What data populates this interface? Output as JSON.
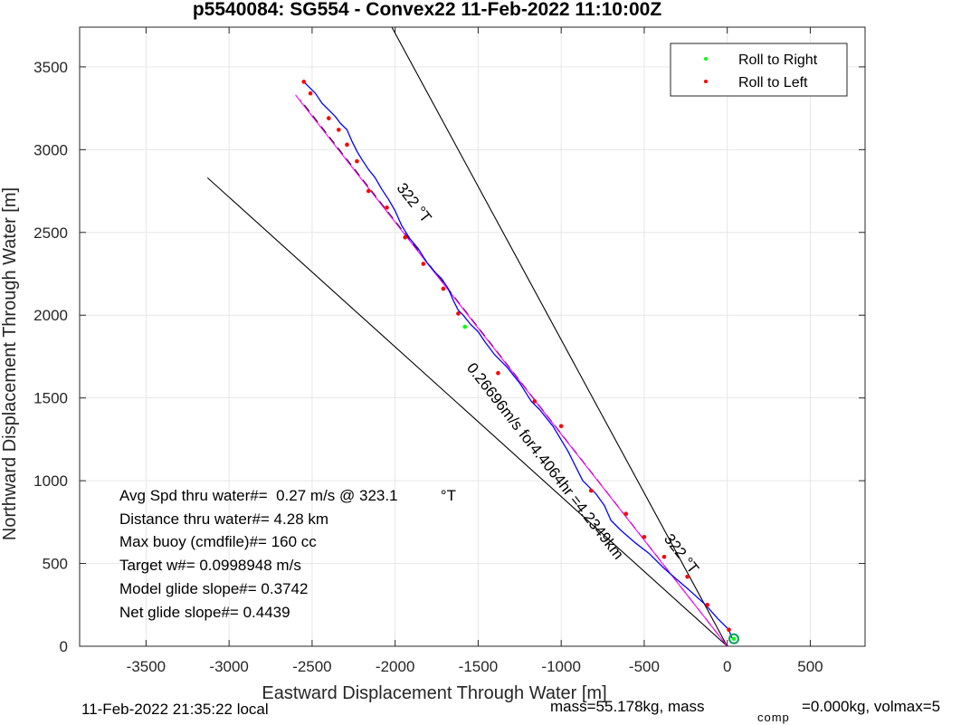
{
  "chart_data": {
    "type": "line",
    "title": "p5540084: SG554 - Convex22 11-Feb-2022 11:10:00Z",
    "xlabel": "Eastward Displacement Through Water [m]",
    "ylabel": "Northward Displacement Through Water [m]",
    "xlim": [
      -3900,
      830
    ],
    "ylim": [
      0,
      3740
    ],
    "xticks": [
      -3500,
      -3000,
      -2500,
      -2000,
      -1500,
      -1000,
      -500,
      0,
      500
    ],
    "yticks": [
      0,
      500,
      1000,
      1500,
      2000,
      2500,
      3000,
      3500
    ],
    "grid": true,
    "legend_position": "top-right",
    "legend": [
      {
        "label": "Roll to Right",
        "color": "#00ff00"
      },
      {
        "label": "Roll to Left",
        "color": "#ff0000"
      }
    ],
    "series": [
      {
        "color": "#0000ff",
        "style": "solid",
        "x": [
          40,
          25,
          10,
          -60,
          -130,
          -230,
          -300,
          -380,
          -470,
          -560,
          -640,
          -700,
          -740,
          -790,
          -870,
          -960,
          -1050,
          -1130,
          -1180,
          -1250,
          -1330,
          -1400,
          -1460,
          -1500,
          -1550,
          -1590,
          -1620,
          -1650,
          -1680,
          -1720,
          -1760,
          -1810,
          -1860,
          -1910,
          -1960,
          -2000,
          -2040,
          -2080,
          -2120,
          -2160,
          -2200,
          -2230,
          -2260,
          -2290,
          -2330,
          -2360,
          -2400,
          -2440,
          -2480,
          -2520,
          -2550
        ],
        "y": [
          40,
          55,
          100,
          170,
          250,
          340,
          400,
          470,
          560,
          630,
          700,
          760,
          850,
          920,
          1000,
          1180,
          1330,
          1430,
          1480,
          1590,
          1690,
          1760,
          1840,
          1900,
          1950,
          2000,
          2030,
          2090,
          2160,
          2220,
          2260,
          2320,
          2400,
          2460,
          2540,
          2630,
          2700,
          2760,
          2830,
          2880,
          2940,
          2990,
          3050,
          3120,
          3160,
          3200,
          3240,
          3280,
          3340,
          3380,
          3410
        ]
      },
      {
        "color": "#ff00ff",
        "style": "solid",
        "x": [
          0,
          -2600
        ],
        "y": [
          0,
          3330
        ]
      },
      {
        "color": "#000000",
        "style": "dashed",
        "x": [
          0,
          -2570
        ],
        "y": [
          0,
          3300
        ]
      },
      {
        "color": "#000000",
        "style": "solid",
        "x": [
          0,
          -2020
        ],
        "y": [
          0,
          3740
        ]
      },
      {
        "color": "#000000",
        "style": "solid",
        "x": [
          0,
          -3130
        ],
        "y": [
          0,
          2830
        ]
      }
    ],
    "roll_right_points": {
      "x": [
        -1580,
        40
      ],
      "y": [
        1930,
        45
      ]
    },
    "roll_left_points": {
      "x": [
        10,
        -120,
        -240,
        -380,
        -500,
        -610,
        -820,
        -1000,
        -1160,
        -1380,
        -1620,
        -1710,
        -1830,
        -1940,
        -2050,
        -2160,
        -2230,
        -2290,
        -2340,
        -2400,
        -2510,
        -2550
      ],
      "y": [
        100,
        250,
        420,
        540,
        660,
        800,
        940,
        1330,
        1480,
        1650,
        2010,
        2160,
        2310,
        2470,
        2650,
        2750,
        2930,
        3030,
        3120,
        3190,
        3340,
        3410
      ]
    },
    "line_labels": [
      {
        "text": "322 °T",
        "x": -1910,
        "y": 2660,
        "angle": 52
      },
      {
        "text": "0.26696m/s for4.4064hr =4.2349km",
        "x": -1120,
        "y": 1100,
        "angle": 52
      },
      {
        "text": "322 °T",
        "x": -300,
        "y": 540,
        "angle": 52
      }
    ],
    "annotations": [
      "Avg Spd thru water#=  0.27 m/s @ 323.1          °T",
      "Distance thru water#=  4.28 km",
      "Max buoy (cmdfile)#= 160 cc",
      "Target w#= 0.0998948 m/s",
      "Model glide slope#= 0.3742",
      "Net glide slope#= 0.4439"
    ],
    "footer_left": "11-Feb-2022 21:35:22 local",
    "footer_right_pre": "mass=55.178kg, mass",
    "footer_right_sub": "comp",
    "footer_right_post": "=0.000kg, volmax=5"
  }
}
